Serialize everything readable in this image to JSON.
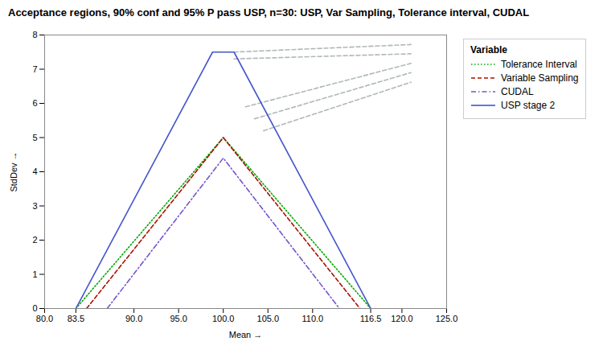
{
  "chart_data": {
    "type": "line",
    "title": "Acceptance regions, 90% conf and 95% P pass USP, n=30: USP, Var Sampling, Tolerance interval, CUDAL",
    "xlabel": "Mean",
    "ylabel": "StdDev",
    "xlim": [
      80.0,
      125.0
    ],
    "ylim": [
      0,
      8
    ],
    "xticks": [
      {
        "value": 80.0,
        "label": "80.0"
      },
      83.5,
      {
        "value": 90.0,
        "label": "90.0"
      },
      {
        "value": 95.0,
        "label": "95.0"
      },
      {
        "value": 100.0,
        "label": "100.0"
      },
      {
        "value": 105.0,
        "label": "105.0"
      },
      {
        "value": 110.0,
        "label": "110.0"
      },
      116.5,
      {
        "value": 120.0,
        "label": "120.0"
      },
      {
        "value": 125.0,
        "label": "125.0"
      }
    ],
    "yticks": [
      0,
      1,
      2,
      3,
      4,
      5,
      6,
      7,
      8
    ],
    "grid": false,
    "legend": "right",
    "legend_title": "Variable",
    "series": [
      {
        "color": "#b0b8b8",
        "line_style": "dashed",
        "x": [
          101.2,
          121.0
        ],
        "values": [
          7.5,
          7.72
        ]
      },
      {
        "color": "#b0b8b8",
        "line_style": "dashed",
        "x": [
          101.2,
          121.0
        ],
        "values": [
          7.3,
          7.45
        ]
      },
      {
        "color": "#b0b8b8",
        "line_style": "dashed",
        "x": [
          102.5,
          121.0
        ],
        "values": [
          5.9,
          7.17
        ]
      },
      {
        "color": "#b0b8b8",
        "line_style": "dashed",
        "x": [
          103.5,
          121.0
        ],
        "values": [
          5.55,
          6.9
        ]
      },
      {
        "color": "#b0b8b8",
        "line_style": "dashed",
        "x": [
          104.5,
          121.0
        ],
        "values": [
          5.2,
          6.62
        ]
      },
      {
        "name": "Tolerance Interval",
        "color": "#00aa00",
        "line_style": "dotted",
        "x": [
          83.5,
          100.0,
          116.5
        ],
        "values": [
          0.0,
          5.0,
          0.0
        ]
      },
      {
        "name": "Variable Sampling",
        "color": "#aa1100",
        "line_style": "dashed",
        "x": [
          84.7,
          100.0,
          115.3
        ],
        "values": [
          0.0,
          5.0,
          0.0
        ]
      },
      {
        "name": "CUDAL",
        "color": "#7755cc",
        "line_style": "dashdot",
        "x": [
          87.0,
          100.0,
          113.0
        ],
        "values": [
          0.0,
          4.4,
          0.0
        ]
      },
      {
        "name": "USP stage 2",
        "color": "#4455cc",
        "line_style": "solid",
        "x": [
          83.5,
          98.8,
          101.2,
          116.5
        ],
        "values": [
          0.0,
          7.5,
          7.5,
          0.0
        ]
      }
    ]
  }
}
